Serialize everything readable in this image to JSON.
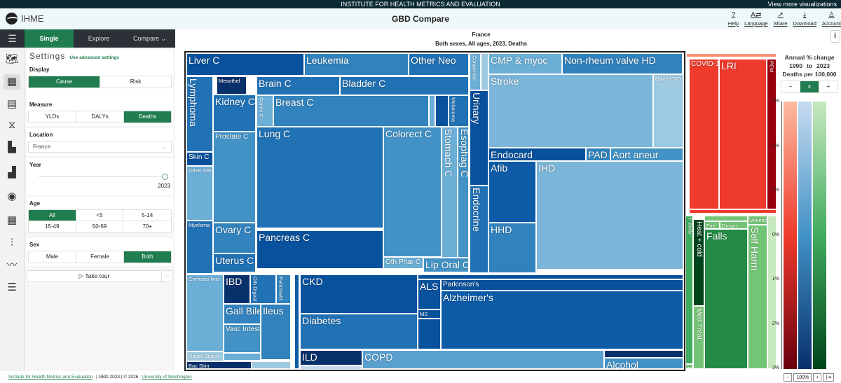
{
  "topbar": {
    "title": "INSTITUTE FOR HEALTH METRICS AND EVALUATION",
    "more": "View more visualizations"
  },
  "header": {
    "logo": "IHME",
    "title": "GBD Compare",
    "icons": [
      {
        "icon": "help-icon",
        "glyph": "?",
        "label": "Help"
      },
      {
        "icon": "language-icon",
        "glyph": "A⇄",
        "label": "Language"
      },
      {
        "icon": "share-icon",
        "glyph": "↗",
        "label": "Share"
      },
      {
        "icon": "download-icon",
        "glyph": "⤓",
        "label": "Download"
      },
      {
        "icon": "account-icon",
        "glyph": "♙",
        "label": "Account"
      }
    ]
  },
  "nav": {
    "menu": "☰",
    "single": "Single",
    "explore": "Explore",
    "compare": "Compare ⌄"
  },
  "settings": {
    "title": "Settings",
    "advanced": "Use advanced settings",
    "display": {
      "label": "Display",
      "options": [
        "Cause",
        "Risk"
      ],
      "selected": "Cause"
    },
    "measure": {
      "label": "Measure",
      "options": [
        "YLDs",
        "DALYs",
        "Deaths"
      ],
      "selected": "Deaths"
    },
    "location": {
      "label": "Location",
      "value": "France"
    },
    "year": {
      "label": "Year",
      "value": "2023"
    },
    "age": {
      "label": "Age",
      "options": [
        "All",
        "<5",
        "5-14",
        "15-49",
        "50-69",
        "70+"
      ],
      "selected": "All"
    },
    "sex": {
      "label": "Sex",
      "options": [
        "Male",
        "Female",
        "Both"
      ],
      "selected": "Both"
    },
    "tour": "▷ Take tour",
    "more": "···"
  },
  "chart": {
    "title": "France",
    "subtitle": "Both sexes, All ages, 2023, Deaths",
    "tiles": [
      {
        "label": "Liver C",
        "color": "#08519c"
      },
      {
        "label": "Leukemia",
        "color": "#3182bd"
      },
      {
        "label": "Other Neo",
        "color": "#2171b5"
      },
      {
        "label": "Lymphoma",
        "color": "#2171b5"
      },
      {
        "label": "Skin C",
        "color": "#08519c"
      },
      {
        "label": "Other MN",
        "color": "#6baed6"
      },
      {
        "label": "Myeloma",
        "color": "#2171b5"
      },
      {
        "label": "Mesothel",
        "color": "#08306b"
      },
      {
        "label": "Kidney C",
        "color": "#2171b5"
      },
      {
        "label": "Prostate C",
        "color": "#4292c6"
      },
      {
        "label": "Ovary C",
        "color": "#3182bd"
      },
      {
        "label": "Uterus C",
        "color": "#2171b5"
      },
      {
        "label": "Brain C",
        "color": "#2171b5"
      },
      {
        "label": "Bladder C",
        "color": "#2171b5"
      },
      {
        "label": "Cervix C",
        "color": "#6baed6"
      },
      {
        "label": "Breast C",
        "color": "#3182bd"
      },
      {
        "label": "",
        "color": "#6baed6"
      },
      {
        "label": "",
        "color": "#08519c"
      },
      {
        "label": "Melanoma",
        "color": "#2171b5"
      },
      {
        "label": "Lung C",
        "color": "#2171b5"
      },
      {
        "label": "Pancreas C",
        "color": "#08519c"
      },
      {
        "label": "Colorect C",
        "color": "#4292c6"
      },
      {
        "label": "Oth Phar C",
        "color": "#6baed6"
      },
      {
        "label": "Stomach C",
        "color": "#6baed6"
      },
      {
        "label": "Esophag C",
        "color": "#4292c6"
      },
      {
        "label": "Lip Oral C",
        "color": "#4292c6"
      },
      {
        "label": "Congenital",
        "color": "#6baed6"
      },
      {
        "label": "",
        "color": "#9ecae1"
      },
      {
        "label": "Urinary",
        "color": "#08519c"
      },
      {
        "label": "Endocrine",
        "color": "#2171b5"
      },
      {
        "label": "CMP & myoc",
        "color": "#6baed6"
      },
      {
        "label": "Non-rheum valve HD",
        "color": "#3182bd"
      },
      {
        "label": "Stroke",
        "color": "#7bb5d9"
      },
      {
        "label": "Other CVD",
        "color": "#9ecae1"
      },
      {
        "label": "Endocard",
        "color": "#08519c"
      },
      {
        "label": "PAD",
        "color": "#3182bd"
      },
      {
        "label": "Aort aneur",
        "color": "#4292c6"
      },
      {
        "label": "Afib",
        "color": "#0d5ba6"
      },
      {
        "label": "HHD",
        "color": "#3182bd"
      },
      {
        "label": "IHD",
        "color": "#7bb5d9"
      },
      {
        "label": "Cirrhosis liver",
        "color": "#6baed6"
      },
      {
        "label": "Upper Digest",
        "color": "#9ecae1"
      },
      {
        "label": "Bac Skin",
        "color": "#08306b"
      },
      {
        "label": "",
        "color": "#9ecae1"
      },
      {
        "label": "IBD",
        "color": "#08306b"
      },
      {
        "label": "Oth Digest",
        "color": "#2171b5"
      },
      {
        "label": "Pancreatit",
        "color": "#3182bd"
      },
      {
        "label": "Gall Bile",
        "color": "#3182bd"
      },
      {
        "label": "Vasc Intest",
        "color": "#4292c6"
      },
      {
        "label": "Ileus",
        "color": "#3182bd"
      },
      {
        "label": "",
        "color": "#6baed6"
      },
      {
        "label": "",
        "color": "#0d5ba6"
      },
      {
        "label": "CKD",
        "color": "#08519c"
      },
      {
        "label": "Diabetes",
        "color": "#2171b5"
      },
      {
        "label": "",
        "color": "#08519c"
      },
      {
        "label": "ALS",
        "color": "#08519c"
      },
      {
        "label": "MS",
        "color": "#08519c"
      },
      {
        "label": "",
        "color": "#08519c"
      },
      {
        "label": "Parkinson's",
        "color": "#08519c"
      },
      {
        "label": "Alzheimer's",
        "color": "#0d5ba6"
      },
      {
        "label": "ILD",
        "color": "#08306b"
      },
      {
        "label": "",
        "color": "#c6dbef"
      },
      {
        "label": "COPD",
        "color": "#5aa0cf"
      },
      {
        "label": "",
        "color": "#08306b"
      },
      {
        "label": "Alcohol",
        "color": "#4292c6"
      },
      {
        "label": "",
        "color": "#fc9272"
      },
      {
        "label": "COVID-19",
        "color": "#ef3b2c"
      },
      {
        "label": "LRI",
        "color": "#ef3b2c"
      },
      {
        "label": "PEM",
        "color": "#99000d"
      },
      {
        "label": "",
        "color": "#ef3b2c"
      },
      {
        "label": "F Body",
        "color": "#41ab5d"
      },
      {
        "label": "Mech",
        "color": "#74c476"
      },
      {
        "label": "Heat + cold",
        "color": "#00441b"
      },
      {
        "label": "Med Treat",
        "color": "#74c476"
      },
      {
        "label": "",
        "color": "#74c476"
      },
      {
        "label": "Fire",
        "color": "#74c476"
      },
      {
        "label": "Drown",
        "color": "#74c476"
      },
      {
        "label": "Falls",
        "color": "#238b45"
      },
      {
        "label": "Violence",
        "color": "#74c476"
      },
      {
        "label": "Self Harm",
        "color": "#74c476"
      },
      {
        "label": "",
        "color": "#c7e9c0"
      }
    ]
  },
  "legend": {
    "title": "Annual % change",
    "from": "1990",
    "to_label": "to",
    "to": "2023",
    "measure": "Deaths per 100,000",
    "buttons": [
      "−",
      "±",
      "+"
    ],
    "ticks": [
      "-3%",
      "-2%",
      "-1%",
      "0%",
      "1%",
      "2%",
      "3%"
    ],
    "info": "i",
    "scales": [
      {
        "name": "red",
        "from": "#fcbba1",
        "mid": "#ef3b2c",
        "to": "#67000d"
      },
      {
        "name": "blue",
        "from": "#c6dbef",
        "mid": "#4292c6",
        "to": "#08306b"
      },
      {
        "name": "green",
        "from": "#c7e9c0",
        "mid": "#41ab5d",
        "to": "#00441b"
      }
    ]
  },
  "footer": {
    "ihme": "Institute for Health Metrics and Evaluation",
    "gbd": "|  GBD 2023  |  © 2026",
    "uw": "University of Washington"
  },
  "zoom": {
    "minus": "−",
    "value": "100%",
    "plus": "+",
    "fit": "|⇥"
  }
}
